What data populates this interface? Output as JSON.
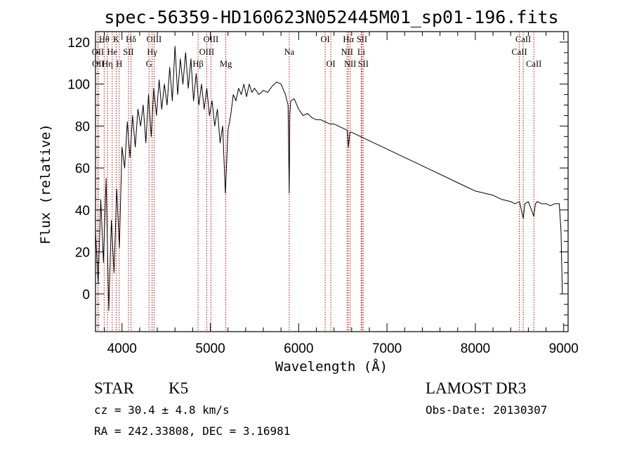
{
  "chart_data": {
    "type": "line",
    "title": "spec-56359-HD160623N052445M01_sp01-196.fits",
    "xlabel": "Wavelength (Å)",
    "ylabel": "Flux (relative)",
    "xlim": [
      3700,
      9050
    ],
    "ylim": [
      -18,
      125
    ],
    "xticks": [
      4000,
      5000,
      6000,
      7000,
      8000,
      9000
    ],
    "yticks": [
      0,
      20,
      40,
      60,
      80,
      100,
      120
    ],
    "xtick_labels": [
      "4000",
      "5000",
      "6000",
      "7000",
      "8000",
      "9000"
    ],
    "ytick_labels": [
      "0",
      "20",
      "40",
      "60",
      "80",
      "100",
      "120"
    ],
    "series": [
      {
        "name": "spectrum",
        "x": [
          3700,
          3730,
          3760,
          3790,
          3820,
          3850,
          3880,
          3910,
          3940,
          3970,
          4000,
          4030,
          4060,
          4090,
          4120,
          4150,
          4180,
          4210,
          4240,
          4270,
          4300,
          4330,
          4360,
          4390,
          4420,
          4450,
          4480,
          4510,
          4540,
          4570,
          4600,
          4630,
          4660,
          4690,
          4720,
          4750,
          4780,
          4810,
          4840,
          4870,
          4900,
          4930,
          4960,
          4990,
          5020,
          5050,
          5080,
          5110,
          5140,
          5170,
          5200,
          5230,
          5260,
          5290,
          5320,
          5350,
          5380,
          5410,
          5440,
          5470,
          5500,
          5550,
          5600,
          5650,
          5700,
          5750,
          5800,
          5850,
          5880,
          5893,
          5900,
          5910,
          5950,
          6000,
          6050,
          6100,
          6150,
          6200,
          6250,
          6300,
          6350,
          6400,
          6450,
          6500,
          6550,
          6563,
          6580,
          6600,
          6650,
          6700,
          6750,
          6800,
          6850,
          6900,
          6950,
          7000,
          7100,
          7200,
          7300,
          7400,
          7500,
          7600,
          7700,
          7800,
          7900,
          8000,
          8100,
          8200,
          8300,
          8400,
          8450,
          8500,
          8542,
          8560,
          8600,
          8662,
          8680,
          8700,
          8750,
          8800,
          8850,
          8900,
          8950,
          8970,
          8985
        ],
        "values": [
          30,
          5,
          45,
          15,
          55,
          -8,
          35,
          10,
          50,
          22,
          70,
          60,
          82,
          65,
          85,
          70,
          88,
          80,
          90,
          72,
          95,
          75,
          98,
          85,
          102,
          88,
          100,
          90,
          108,
          92,
          118,
          95,
          112,
          100,
          115,
          98,
          112,
          92,
          105,
          90,
          100,
          88,
          98,
          85,
          92,
          80,
          88,
          72,
          80,
          48,
          78,
          85,
          95,
          92,
          98,
          95,
          100,
          94,
          100,
          96,
          98,
          95,
          97,
          96,
          99,
          101,
          100,
          95,
          90,
          48,
          85,
          92,
          93,
          88,
          85,
          86,
          84,
          83,
          83,
          82,
          81,
          81,
          80,
          79,
          78,
          70,
          77,
          77,
          76,
          75,
          74,
          73,
          72,
          71,
          70,
          69,
          67,
          65,
          63,
          61,
          59,
          57,
          55,
          53,
          51,
          49,
          48,
          47,
          45,
          44,
          43,
          44,
          36,
          43,
          44,
          37,
          43,
          44,
          43,
          43,
          42,
          43,
          43,
          30,
          0
        ]
      }
    ],
    "line_markers": [
      {
        "name": "Hθ",
        "wavelength": 3798,
        "row": 0
      },
      {
        "name": "OII",
        "wavelength": 3727,
        "row": 1
      },
      {
        "name": "OII",
        "wavelength": 3730,
        "row": 2
      },
      {
        "name": "Hη",
        "wavelength": 3835,
        "row": 2
      },
      {
        "name": "He",
        "wavelength": 3889,
        "row": 1
      },
      {
        "name": "K",
        "wavelength": 3934,
        "row": 0
      },
      {
        "name": "H",
        "wavelength": 3968,
        "row": 2
      },
      {
        "name": "SII",
        "wavelength": 4073,
        "row": 1
      },
      {
        "name": "Hδ",
        "wavelength": 4102,
        "row": 0
      },
      {
        "name": "OIII",
        "wavelength": 4363,
        "row": 0
      },
      {
        "name": "Hγ",
        "wavelength": 4341,
        "row": 1
      },
      {
        "name": "G",
        "wavelength": 4305,
        "row": 2
      },
      {
        "name": "Hβ",
        "wavelength": 4861,
        "row": 2
      },
      {
        "name": "OIII",
        "wavelength": 4959,
        "row": 1
      },
      {
        "name": "OIII",
        "wavelength": 5007,
        "row": 0
      },
      {
        "name": "Mg",
        "wavelength": 5175,
        "row": 2
      },
      {
        "name": "Na",
        "wavelength": 5893,
        "row": 1
      },
      {
        "name": "OI",
        "wavelength": 6300,
        "row": 0
      },
      {
        "name": "OI",
        "wavelength": 6364,
        "row": 2
      },
      {
        "name": "Hα",
        "wavelength": 6563,
        "row": 0
      },
      {
        "name": "NII",
        "wavelength": 6548,
        "row": 1
      },
      {
        "name": "NII",
        "wavelength": 6583,
        "row": 2
      },
      {
        "name": "SII",
        "wavelength": 6716,
        "row": 0
      },
      {
        "name": "SII",
        "wavelength": 6731,
        "row": 2
      },
      {
        "name": "Li",
        "wavelength": 6708,
        "row": 1
      },
      {
        "name": "CaII",
        "wavelength": 8542,
        "row": 0
      },
      {
        "name": "CaII",
        "wavelength": 8498,
        "row": 1
      },
      {
        "name": "CaII",
        "wavelength": 8662,
        "row": 2
      }
    ]
  },
  "info": {
    "object_class": "STAR",
    "subclass": "K5",
    "redshift_text": "cz = 30.4 ± 4.8 km/s",
    "coords_text": "RA = 242.33808, DEC =   3.16981",
    "survey": "LAMOST DR3",
    "obs_date_text": "Obs-Date: 20130307"
  },
  "colors": {
    "spectrum": "#000000",
    "line_marker": "#cc0000"
  }
}
